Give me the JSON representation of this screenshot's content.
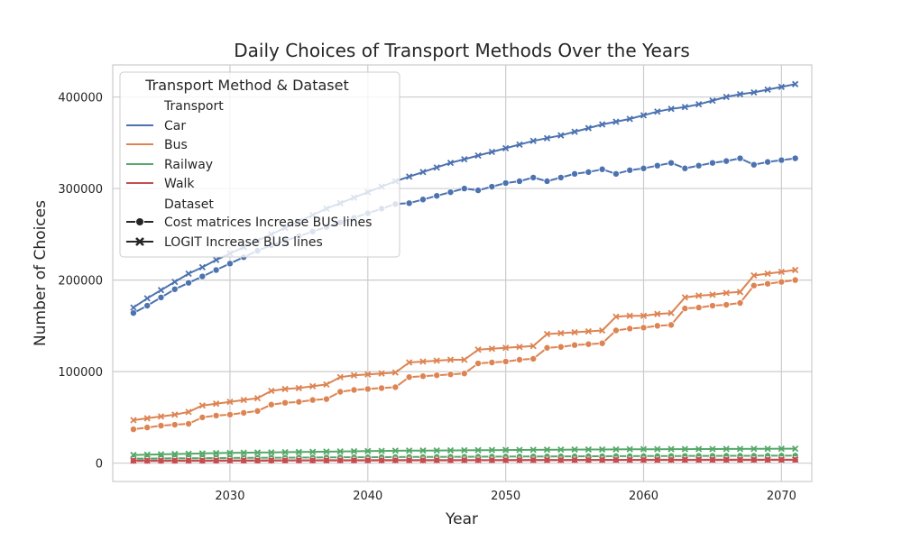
{
  "chart_data": {
    "type": "line",
    "title": "Daily Choices of Transport Methods Over the Years",
    "xlabel": "Year",
    "ylabel": "Number of Choices",
    "xlim": [
      2021.5,
      2072.2
    ],
    "ylim": [
      -20000,
      435000
    ],
    "xticks": [
      2030,
      2040,
      2050,
      2060,
      2070
    ],
    "yticks": [
      0,
      100000,
      200000,
      300000,
      400000
    ],
    "grid": true,
    "legend": {
      "title": "Transport Method & Dataset",
      "placement": "upper-left",
      "transport_header": "Transport",
      "dataset_header": "Dataset",
      "transport_entries": [
        {
          "name": "Car",
          "color": "#4c72b0"
        },
        {
          "name": "Bus",
          "color": "#dd8452"
        },
        {
          "name": "Railway",
          "color": "#55a868"
        },
        {
          "name": "Walk",
          "color": "#c44e52"
        }
      ],
      "dataset_entries": [
        {
          "name": "Cost matrices Increase BUS lines",
          "marker": "circle"
        },
        {
          "name": "LOGIT Increase BUS lines",
          "marker": "x"
        }
      ]
    },
    "x": [
      2023,
      2024,
      2025,
      2026,
      2027,
      2028,
      2029,
      2030,
      2031,
      2032,
      2033,
      2034,
      2035,
      2036,
      2037,
      2038,
      2039,
      2040,
      2041,
      2042,
      2043,
      2044,
      2045,
      2046,
      2047,
      2048,
      2049,
      2050,
      2051,
      2052,
      2053,
      2054,
      2055,
      2056,
      2057,
      2058,
      2059,
      2060,
      2061,
      2062,
      2063,
      2064,
      2065,
      2066,
      2067,
      2068,
      2069,
      2070,
      2071
    ],
    "series": [
      {
        "transport": "Car",
        "dataset": "Cost matrices Increase BUS lines",
        "color": "#4c72b0",
        "marker": "circle",
        "values": [
          164000,
          172000,
          181000,
          190000,
          197000,
          204000,
          211000,
          218000,
          225000,
          232000,
          238000,
          243000,
          248000,
          253000,
          258000,
          263000,
          268000,
          273000,
          278000,
          283000,
          284000,
          288000,
          292000,
          296000,
          300000,
          298000,
          302000,
          306000,
          308000,
          312000,
          308000,
          312000,
          316000,
          318000,
          321000,
          316000,
          320000,
          322000,
          325000,
          328000,
          322000,
          325000,
          328000,
          330000,
          333000,
          326000,
          329000,
          331000,
          333000
        ]
      },
      {
        "transport": "Car",
        "dataset": "LOGIT Increase BUS lines",
        "color": "#4c72b0",
        "marker": "x",
        "values": [
          170000,
          180000,
          189000,
          198000,
          207000,
          214000,
          222000,
          229000,
          236000,
          243000,
          250000,
          257000,
          264000,
          271000,
          278000,
          284000,
          290000,
          296000,
          302000,
          308000,
          313000,
          318000,
          323000,
          328000,
          332000,
          336000,
          340000,
          344000,
          348000,
          352000,
          355000,
          358000,
          362000,
          366000,
          370000,
          373000,
          376000,
          380000,
          384000,
          387000,
          389000,
          392000,
          396000,
          400000,
          403000,
          405000,
          408000,
          411000,
          414000
        ]
      },
      {
        "transport": "Bus",
        "dataset": "Cost matrices Increase BUS lines",
        "color": "#dd8452",
        "marker": "circle",
        "values": [
          37000,
          39000,
          41000,
          42000,
          43000,
          50000,
          52000,
          53000,
          55000,
          57000,
          64000,
          66000,
          67000,
          69000,
          70000,
          78000,
          80000,
          81000,
          82000,
          83000,
          94000,
          95000,
          96000,
          97000,
          98000,
          109000,
          110000,
          111000,
          113000,
          114000,
          126000,
          127000,
          129000,
          130000,
          131000,
          145000,
          147000,
          148000,
          150000,
          151000,
          169000,
          170000,
          172000,
          173000,
          175000,
          194000,
          196000,
          198000,
          200000
        ]
      },
      {
        "transport": "Bus",
        "dataset": "LOGIT Increase BUS lines",
        "color": "#dd8452",
        "marker": "x",
        "values": [
          47000,
          49000,
          51000,
          53000,
          56000,
          63000,
          65000,
          67000,
          69000,
          71000,
          79000,
          81000,
          82000,
          84000,
          86000,
          94000,
          96000,
          97000,
          98000,
          99000,
          110000,
          111000,
          112000,
          113000,
          113000,
          124000,
          125000,
          126000,
          127000,
          128000,
          141000,
          142000,
          143000,
          144000,
          145000,
          160000,
          161000,
          161000,
          163000,
          164000,
          181000,
          183000,
          184000,
          186000,
          187000,
          205000,
          207000,
          209000,
          211000
        ]
      },
      {
        "transport": "Railway",
        "dataset": "Cost matrices Increase BUS lines",
        "color": "#55a868",
        "marker": "circle",
        "values": [
          5000,
          5000,
          5200,
          5300,
          5400,
          5500,
          5600,
          5700,
          5800,
          5900,
          6000,
          6000,
          6100,
          6200,
          6300,
          6400,
          6500,
          6500,
          6600,
          6700,
          6800,
          6800,
          6900,
          7000,
          7000,
          7100,
          7200,
          7200,
          7300,
          7400,
          7400,
          7500,
          7500,
          7600,
          7600,
          7700,
          7700,
          7800,
          7800,
          7900,
          7900,
          8000,
          8000,
          8100,
          8100,
          8100,
          8200,
          8200,
          8300
        ]
      },
      {
        "transport": "Railway",
        "dataset": "LOGIT Increase BUS lines",
        "color": "#55a868",
        "marker": "x",
        "values": [
          9000,
          9300,
          9600,
          10000,
          10300,
          10600,
          11000,
          11200,
          11400,
          11600,
          11800,
          12000,
          12200,
          12400,
          12600,
          12800,
          13000,
          13200,
          13400,
          13600,
          13700,
          13800,
          13900,
          14000,
          14100,
          14200,
          14300,
          14400,
          14500,
          14600,
          14700,
          14800,
          14900,
          15000,
          15000,
          15100,
          15200,
          15300,
          15300,
          15400,
          15400,
          15500,
          15500,
          15600,
          15600,
          15700,
          15700,
          15800,
          15800
        ]
      },
      {
        "transport": "Walk",
        "dataset": "Cost matrices Increase BUS lines",
        "color": "#c44e52",
        "marker": "circle",
        "values": [
          2500,
          2500,
          2500,
          2600,
          2600,
          2600,
          2600,
          2700,
          2700,
          2700,
          2700,
          2800,
          2800,
          2800,
          2800,
          2900,
          2900,
          2900,
          2900,
          3000,
          3000,
          3000,
          3000,
          3000,
          3100,
          3100,
          3100,
          3100,
          3100,
          3200,
          3200,
          3200,
          3200,
          3200,
          3300,
          3300,
          3300,
          3300,
          3300,
          3300,
          3400,
          3400,
          3400,
          3400,
          3400,
          3400,
          3500,
          3500,
          3500
        ]
      },
      {
        "transport": "Walk",
        "dataset": "LOGIT Increase BUS lines",
        "color": "#c44e52",
        "marker": "x",
        "values": [
          2800,
          2800,
          2900,
          2900,
          2900,
          2900,
          3000,
          3000,
          3000,
          3000,
          3100,
          3100,
          3100,
          3100,
          3200,
          3200,
          3200,
          3200,
          3300,
          3300,
          3300,
          3300,
          3400,
          3400,
          3400,
          3400,
          3400,
          3500,
          3500,
          3500,
          3500,
          3500,
          3600,
          3600,
          3600,
          3600,
          3600,
          3700,
          3700,
          3700,
          3700,
          3700,
          3800,
          3800,
          3800,
          3800,
          3800,
          3800,
          3900
        ]
      }
    ]
  }
}
